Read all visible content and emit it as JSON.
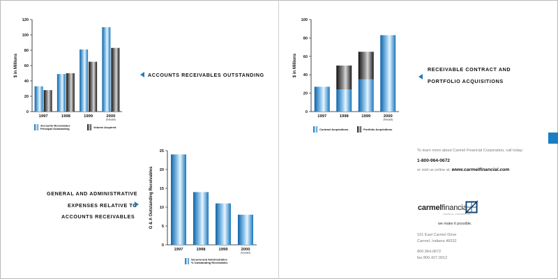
{
  "callouts": {
    "accounts": "ACCOUNTS RECEIVABLES OUTSTANDING",
    "contract_line1": "RECEIVABLE CONTRACT AND",
    "contract_line2": "PORTFOLIO ACQUISITIONS",
    "ga_line1": "GENERAL AND ADMINISTRATIVE",
    "ga_line2": "EXPENSES RELATIVE TO",
    "ga_line3": "ACCOUNTS RECEIVABLES"
  },
  "contact": {
    "intro": "To learn more about Carmel Financial Corporation, call today:",
    "phone": "1-800-964-0672",
    "online_prefix": "or visit us online at:",
    "url": "www.carmelfinancial.com",
    "address1": "101 East Carmel Drive",
    "address2": "Carmel, Indiana 46032",
    "phone2": "800.964.0672",
    "fax": "fax 800.427.0012"
  },
  "brand": {
    "name_bold": "carmel",
    "name_light": "financial",
    "sub": "FINANCIAL CORPORATION",
    "tagline": "we make it possible."
  },
  "colors": {
    "blue": "#1b7ec2",
    "black": "#1a1a1a"
  },
  "chart_data": [
    {
      "id": "chart-receivables",
      "type": "bar",
      "categories": [
        "1997",
        "1998",
        "1999",
        "2000"
      ],
      "category_notes": [
        "",
        "",
        "",
        "(forecast)"
      ],
      "series": [
        {
          "name": "Accounts Receivables Principal Outstanding",
          "values": [
            33,
            49,
            81,
            110
          ],
          "color": "blue"
        },
        {
          "name": "Volume Acquired",
          "values": [
            28,
            50,
            65,
            83
          ],
          "color": "black"
        }
      ],
      "xlabel": "",
      "ylabel": "$ in Millions",
      "ylim": [
        0,
        120
      ],
      "yticks": [
        0,
        20,
        40,
        60,
        80,
        100,
        120
      ],
      "legend": [
        "Accounts Receivables Principal Outstanding",
        "Volume Acquired"
      ]
    },
    {
      "id": "chart-acquisitions",
      "type": "bar",
      "stacked": true,
      "categories": [
        "1997",
        "1998",
        "1999",
        "2000"
      ],
      "category_notes": [
        "",
        "",
        "",
        "(forecast)"
      ],
      "series": [
        {
          "name": "Contract Acquisitions",
          "values": [
            27,
            24,
            35,
            83
          ],
          "color": "blue"
        },
        {
          "name": "Portfolio Acquisitions",
          "values": [
            0,
            26,
            30,
            0
          ],
          "color": "black"
        }
      ],
      "xlabel": "",
      "ylabel": "$ in Millions",
      "ylim": [
        0,
        100
      ],
      "yticks": [
        0,
        20,
        40,
        60,
        80,
        100
      ],
      "legend": [
        "Contract Acquisitions",
        "Portfolio Acquisitions"
      ]
    },
    {
      "id": "chart-ga",
      "type": "bar",
      "categories": [
        "1997",
        "1998",
        "1999",
        "2000"
      ],
      "category_notes": [
        "",
        "",
        "",
        "(forecast)"
      ],
      "series": [
        {
          "name": "General and Administrative % Outstanding Receivables",
          "values": [
            24,
            14,
            11,
            8
          ],
          "color": "blue"
        }
      ],
      "xlabel": "",
      "ylabel": "G & A Outstanding Receivables",
      "ylim": [
        0,
        25
      ],
      "yticks": [
        0,
        5,
        10,
        15,
        20,
        25
      ],
      "legend": [
        "General and Administrative % Outstanding Receivables"
      ]
    }
  ]
}
